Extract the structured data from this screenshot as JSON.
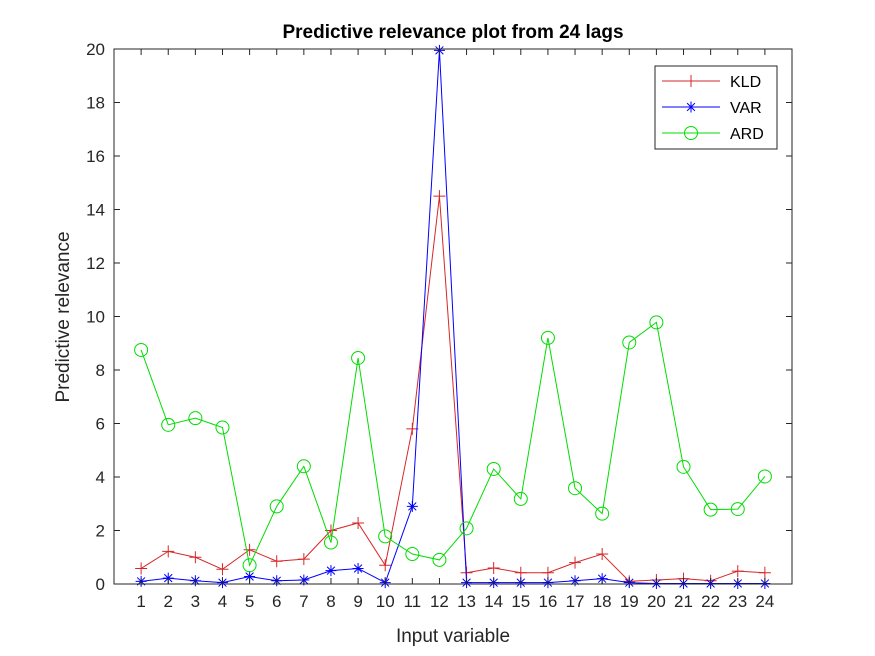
{
  "chart_data": {
    "type": "line",
    "title": "Predictive relevance plot from 24 lags",
    "xlabel": "Input variable",
    "ylabel": "Predictive relevance",
    "x": [
      1,
      2,
      3,
      4,
      5,
      6,
      7,
      8,
      9,
      10,
      11,
      12,
      13,
      14,
      15,
      16,
      17,
      18,
      19,
      20,
      21,
      22,
      23,
      24
    ],
    "xlim": [
      0,
      25
    ],
    "ylim": [
      0,
      20
    ],
    "yticks": [
      0,
      2,
      4,
      6,
      8,
      10,
      12,
      14,
      16,
      18,
      20
    ],
    "grid": false,
    "legend_position": "top-right",
    "series": [
      {
        "name": "KLD",
        "color": "#d62728",
        "marker": "plus",
        "values": [
          0.58,
          1.22,
          1.0,
          0.55,
          1.28,
          0.85,
          0.93,
          2.0,
          2.28,
          0.7,
          5.8,
          14.5,
          0.42,
          0.6,
          0.42,
          0.42,
          0.8,
          1.12,
          0.1,
          0.15,
          0.2,
          0.12,
          0.48,
          0.42
        ]
      },
      {
        "name": "VAR",
        "color": "#0000ff",
        "marker": "asterisk",
        "values": [
          0.1,
          0.22,
          0.12,
          0.05,
          0.28,
          0.12,
          0.15,
          0.5,
          0.58,
          0.05,
          2.9,
          19.95,
          0.05,
          0.05,
          0.05,
          0.05,
          0.12,
          0.2,
          0.05,
          0.02,
          0.02,
          0.02,
          0.02,
          0.02
        ]
      },
      {
        "name": "ARD",
        "color": "#00dd00",
        "marker": "circle",
        "values": [
          8.75,
          5.95,
          6.2,
          5.85,
          0.7,
          2.9,
          4.4,
          1.55,
          8.45,
          1.78,
          1.12,
          0.9,
          2.08,
          4.3,
          3.18,
          9.2,
          3.58,
          2.63,
          9.03,
          9.78,
          4.38,
          2.78,
          2.8,
          4.02
        ]
      }
    ]
  }
}
